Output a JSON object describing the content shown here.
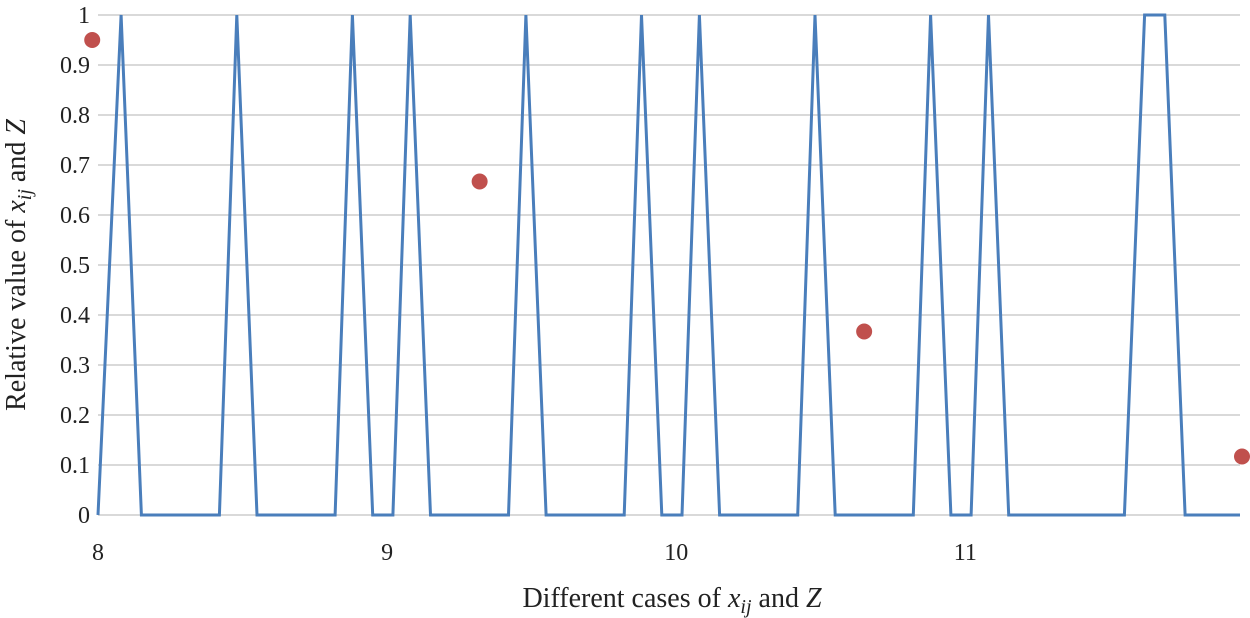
{
  "chart_data": {
    "type": "line",
    "title": "",
    "xlabel": {
      "prefix": "Different cases of ",
      "var1": "x",
      "var1_sub": "ij",
      "middle": " and ",
      "var2": "Z"
    },
    "ylabel": {
      "prefix": "Relative value of ",
      "var1": "x",
      "var1_sub": "ij",
      "middle": " and ",
      "var2": "Z"
    },
    "xlim": [
      8,
      11.95
    ],
    "ylim": [
      0,
      1
    ],
    "x_ticks": [
      8,
      9,
      10,
      11
    ],
    "x_tick_labels": [
      "8",
      "9",
      "10",
      "11"
    ],
    "y_ticks": [
      0,
      0.1,
      0.2,
      0.3,
      0.4,
      0.5,
      0.6,
      0.7,
      0.8,
      0.9,
      1
    ],
    "y_tick_labels": [
      "0",
      "0.1",
      "0.2",
      "0.3",
      "0.4",
      "0.5",
      "0.6",
      "0.7",
      "0.8",
      "0.9",
      "1"
    ],
    "grid": true,
    "series": [
      {
        "name": "x_ij",
        "kind": "line",
        "color": "#4a7ebb",
        "points": [
          [
            8.0,
            0
          ],
          [
            8.08,
            1
          ],
          [
            8.15,
            0
          ],
          [
            8.42,
            0
          ],
          [
            8.48,
            1
          ],
          [
            8.55,
            0
          ],
          [
            8.82,
            0
          ],
          [
            8.88,
            1
          ],
          [
            8.95,
            0
          ],
          [
            9.02,
            0
          ],
          [
            9.08,
            1
          ],
          [
            9.15,
            0
          ],
          [
            9.42,
            0
          ],
          [
            9.48,
            1
          ],
          [
            9.55,
            0
          ],
          [
            9.82,
            0
          ],
          [
            9.88,
            1
          ],
          [
            9.95,
            0
          ],
          [
            10.02,
            0
          ],
          [
            10.08,
            1
          ],
          [
            10.15,
            0
          ],
          [
            10.42,
            0
          ],
          [
            10.48,
            1
          ],
          [
            10.55,
            0
          ],
          [
            10.82,
            0
          ],
          [
            10.88,
            1
          ],
          [
            10.95,
            0
          ],
          [
            11.02,
            0
          ],
          [
            11.08,
            1
          ],
          [
            11.15,
            0
          ],
          [
            11.55,
            0
          ],
          [
            11.62,
            1
          ],
          [
            11.69,
            1
          ],
          [
            11.76,
            0
          ],
          [
            11.95,
            0
          ]
        ]
      },
      {
        "name": "Z",
        "kind": "scatter",
        "color": "#c0504d",
        "points": [
          [
            7.98,
            0.95
          ],
          [
            9.32,
            0.667
          ],
          [
            10.65,
            0.367
          ],
          [
            11.98,
            0.117
          ]
        ]
      }
    ]
  }
}
